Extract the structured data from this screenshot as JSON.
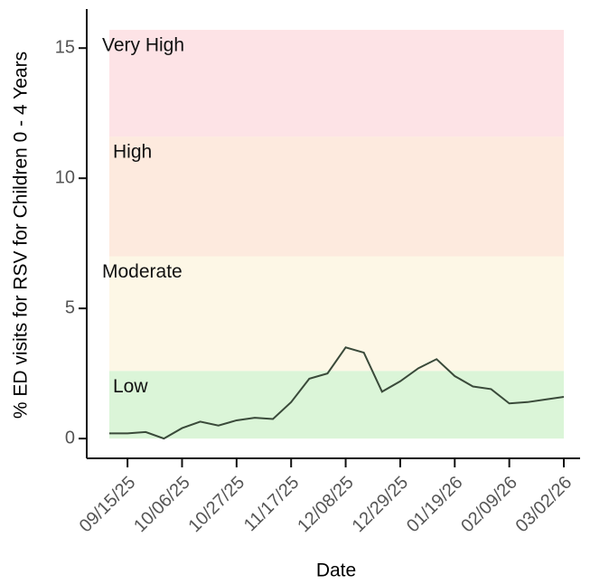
{
  "chart_data": {
    "type": "line",
    "y_label": "% ED visits for RSV for Children 0 - 4 Years",
    "x_label": "Date",
    "categories": [
      null,
      "09/15/25",
      null,
      null,
      "10/06/25",
      null,
      null,
      "10/27/25",
      null,
      null,
      "11/17/25",
      null,
      null,
      "12/08/25",
      null,
      null,
      "12/29/25",
      null,
      null,
      "01/19/26",
      null,
      null,
      "02/09/26",
      null,
      null,
      "03/02/26"
    ],
    "values": [
      0.2,
      0.2,
      0.25,
      0.0,
      0.4,
      0.65,
      0.5,
      0.7,
      0.8,
      0.75,
      1.4,
      2.3,
      2.5,
      3.5,
      3.3,
      1.8,
      2.2,
      2.7,
      3.05,
      2.4,
      2.0,
      1.9,
      1.35,
      1.4,
      1.5,
      1.6
    ],
    "color": "#3a4a3a",
    "ylim": [
      -0.76,
      16.5
    ],
    "yticks": [
      0,
      5,
      10,
      15
    ],
    "bands": [
      {
        "label": "Low",
        "from": 0,
        "to": 2.6,
        "color": "#dbf5d8"
      },
      {
        "label": "Moderate",
        "from": 2.6,
        "to": 7.0,
        "color": "#fdf7e6"
      },
      {
        "label": "High",
        "from": 7.0,
        "to": 11.6,
        "color": "#fdeade"
      },
      {
        "label": "Very High",
        "from": 11.6,
        "to": 15.7,
        "color": "#fde3e6"
      }
    ]
  }
}
